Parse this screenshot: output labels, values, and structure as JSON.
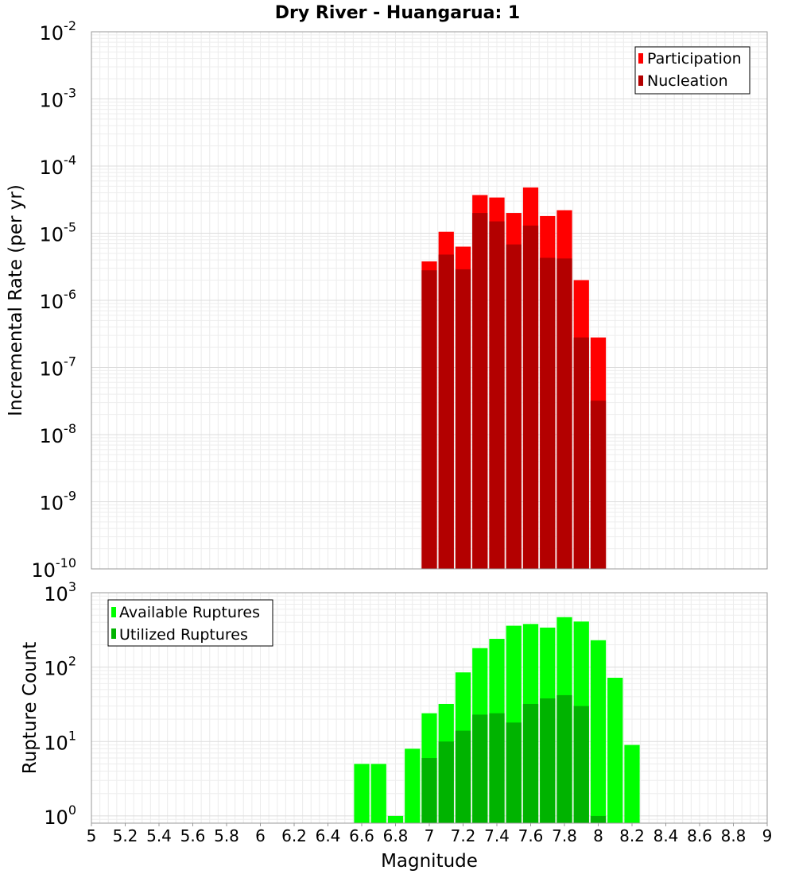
{
  "chart_data": [
    {
      "type": "bar",
      "title": "Dry River - Huangarua: 1",
      "xlabel": "Magnitude",
      "ylabel": "Incremental Rate (per yr)",
      "yscale": "log",
      "xlim": [
        5,
        9
      ],
      "ylim": [
        1e-10,
        0.01
      ],
      "grid": true,
      "legend_position": "top-right",
      "bar_width": 0.1,
      "x": [
        7.0,
        7.1,
        7.2,
        7.3,
        7.4,
        7.5,
        7.6,
        7.7,
        7.8,
        7.9,
        8.0
      ],
      "series": [
        {
          "name": "Participation",
          "color": "#ff0000",
          "values": [
            3.8e-06,
            1.05e-05,
            6.3e-06,
            3.7e-05,
            3.4e-05,
            2e-05,
            4.8e-05,
            1.8e-05,
            2.2e-05,
            2e-06,
            2.8e-07
          ]
        },
        {
          "name": "Nucleation",
          "color": "#b30000",
          "values": [
            2.8e-06,
            4.8e-06,
            2.9e-06,
            2e-05,
            1.5e-05,
            6.8e-06,
            1.3e-05,
            4.3e-06,
            4.2e-06,
            2.8e-07,
            3.2e-08
          ]
        }
      ],
      "ytick_labels": [
        {
          "base": "10",
          "exp": "-10"
        },
        {
          "base": "10",
          "exp": "-9"
        },
        {
          "base": "10",
          "exp": "-8"
        },
        {
          "base": "10",
          "exp": "-7"
        },
        {
          "base": "10",
          "exp": "-6"
        },
        {
          "base": "10",
          "exp": "-5"
        },
        {
          "base": "10",
          "exp": "-4"
        },
        {
          "base": "10",
          "exp": "-3"
        },
        {
          "base": "10",
          "exp": "-2"
        }
      ]
    },
    {
      "type": "bar",
      "xlabel": "Magnitude",
      "ylabel": "Rupture Count",
      "yscale": "log",
      "xlim": [
        5,
        9
      ],
      "ylim": [
        0.8,
        1000
      ],
      "grid": true,
      "legend_position": "top-left",
      "bar_width": 0.1,
      "x": [
        6.6,
        6.7,
        6.8,
        6.9,
        7.0,
        7.1,
        7.2,
        7.3,
        7.4,
        7.5,
        7.6,
        7.7,
        7.8,
        7.9,
        8.0,
        8.1,
        8.2
      ],
      "series": [
        {
          "name": "Available Ruptures",
          "color": "#00ff00",
          "values": [
            5,
            5,
            1,
            8,
            24,
            32,
            85,
            180,
            240,
            360,
            380,
            340,
            470,
            410,
            230,
            72,
            9
          ]
        },
        {
          "name": "Utilized Ruptures",
          "color": "#00b300",
          "values": [
            0,
            0,
            0,
            0,
            6,
            10,
            14,
            23,
            24,
            18,
            32,
            38,
            42,
            30,
            1,
            0,
            0
          ]
        }
      ],
      "ytick_labels": [
        {
          "base": "10",
          "exp": "0"
        },
        {
          "base": "10",
          "exp": "1"
        },
        {
          "base": "10",
          "exp": "2"
        },
        {
          "base": "10",
          "exp": "3"
        }
      ],
      "xtick_labels": [
        "5",
        "5.2",
        "5.4",
        "5.6",
        "5.8",
        "6",
        "6.2",
        "6.4",
        "6.6",
        "6.8",
        "7",
        "7.2",
        "7.4",
        "7.6",
        "7.8",
        "8",
        "8.2",
        "8.4",
        "8.6",
        "8.8",
        "9"
      ]
    }
  ]
}
